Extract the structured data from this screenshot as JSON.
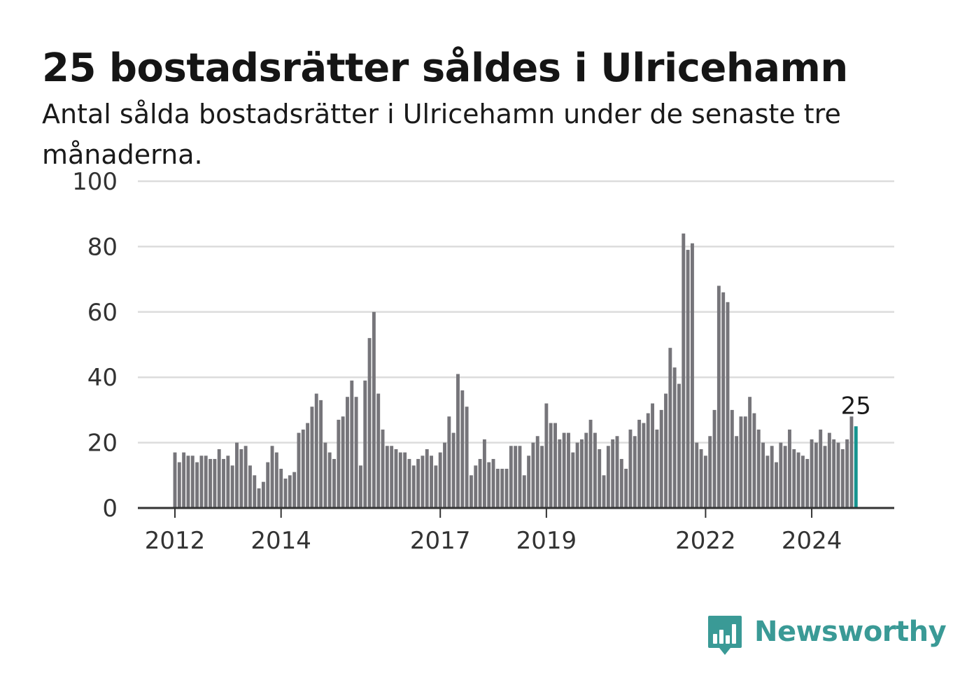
{
  "title": "25 bostadsrätter såldes i Ulricehamn",
  "subtitle": "Antal sålda bostadsrätter i Ulricehamn under de senaste tre månaderna.",
  "brand": {
    "name": "Newsworthy",
    "color": "#3a9a96",
    "icon": "bar-chart-speech-bubble-icon"
  },
  "colors": {
    "bar": "#76757a",
    "highlight": "#16948f",
    "grid": "#dcdcdc",
    "axis": "#333333"
  },
  "chart_data": {
    "type": "bar",
    "x_start": "2012-01",
    "x_step": "month",
    "ylim": [
      0,
      100
    ],
    "y_ticks": [
      0,
      20,
      40,
      60,
      80,
      100
    ],
    "x_ticks": [
      {
        "label": "2012",
        "date": "2012-01"
      },
      {
        "label": "2014",
        "date": "2014-01"
      },
      {
        "label": "2017",
        "date": "2017-01"
      },
      {
        "label": "2019",
        "date": "2019-01"
      },
      {
        "label": "2022",
        "date": "2022-01"
      },
      {
        "label": "2024",
        "date": "2024-01"
      }
    ],
    "grid": true,
    "values": [
      17,
      14,
      17,
      16,
      16,
      14,
      16,
      16,
      15,
      15,
      18,
      15,
      16,
      13,
      20,
      18,
      19,
      13,
      10,
      6,
      8,
      14,
      19,
      17,
      12,
      9,
      10,
      11,
      23,
      24,
      26,
      31,
      35,
      33,
      20,
      17,
      15,
      27,
      28,
      34,
      39,
      34,
      13,
      39,
      52,
      60,
      35,
      24,
      19,
      19,
      18,
      17,
      17,
      15,
      13,
      15,
      16,
      18,
      16,
      13,
      17,
      20,
      28,
      23,
      41,
      36,
      31,
      10,
      13,
      15,
      21,
      14,
      15,
      12,
      12,
      12,
      19,
      19,
      19,
      10,
      16,
      20,
      22,
      19,
      32,
      26,
      26,
      21,
      23,
      23,
      17,
      20,
      21,
      23,
      27,
      23,
      18,
      10,
      19,
      21,
      22,
      15,
      12,
      24,
      22,
      27,
      26,
      29,
      32,
      24,
      30,
      35,
      49,
      43,
      38,
      84,
      79,
      81,
      20,
      18,
      16,
      22,
      30,
      68,
      66,
      63,
      30,
      22,
      28,
      28,
      34,
      29,
      24,
      20,
      16,
      19,
      14,
      20,
      19,
      24,
      18,
      17,
      16,
      15,
      21,
      20,
      24,
      19,
      23,
      21,
      20,
      18,
      21,
      28,
      25
    ],
    "highlight_last": true,
    "label_last": "25"
  }
}
